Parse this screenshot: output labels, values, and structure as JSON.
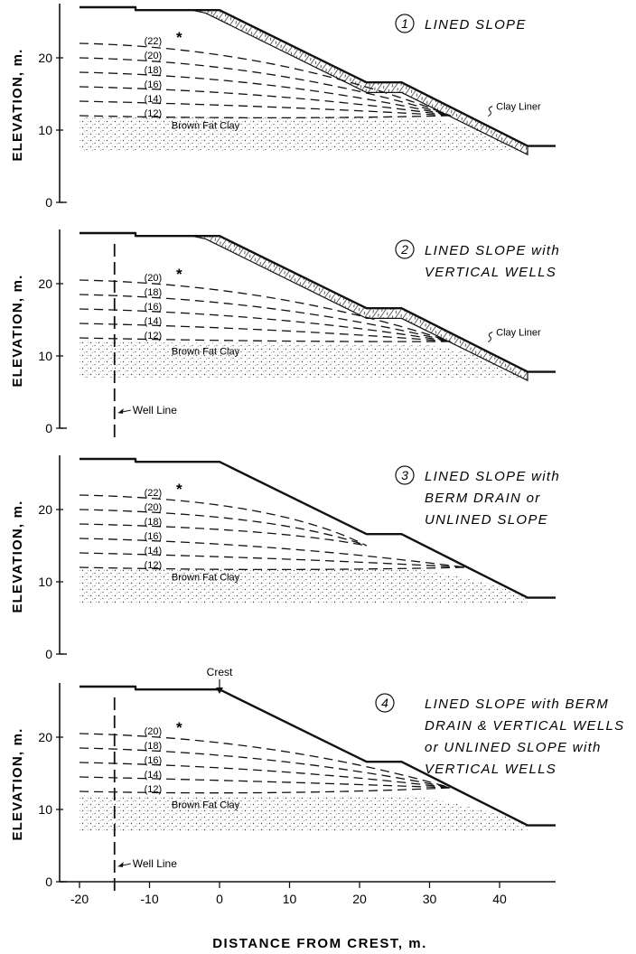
{
  "x_axis": {
    "label": "DISTANCE FROM CREST, m.",
    "ticks": [
      -20,
      -10,
      0,
      10,
      20,
      30,
      40
    ],
    "range": [
      -20,
      48
    ]
  },
  "y_axis": {
    "label": "ELEVATION, m.",
    "ticks": [
      0,
      10,
      20
    ],
    "range": [
      0,
      27
    ]
  },
  "labels": {
    "crest": "Crest",
    "brown_fat_clay": "Brown Fat Clay",
    "clay_liner": "Clay Liner",
    "well_line": "Well Line"
  },
  "colors": {
    "ink": "#111111",
    "paper": "#ffffff"
  },
  "panels": [
    {
      "number": "1",
      "title_lines": [
        "LINED SLOPE"
      ],
      "title_underline": [],
      "lined": true,
      "wells": false,
      "crest_label": false,
      "contours": [
        {
          "label": "(22)",
          "asterisk": true,
          "start_elev": 22,
          "end_x": 33,
          "end_elev": 12
        },
        {
          "label": "(20)",
          "asterisk": false,
          "start_elev": 20,
          "end_x": 33,
          "end_elev": 12
        },
        {
          "label": "(18)",
          "asterisk": false,
          "start_elev": 18,
          "end_x": 33,
          "end_elev": 12
        },
        {
          "label": "(16)",
          "asterisk": false,
          "start_elev": 16,
          "end_x": 33,
          "end_elev": 12
        },
        {
          "label": "(14)",
          "asterisk": false,
          "start_elev": 14,
          "end_x": 33,
          "end_elev": 12
        },
        {
          "label": "(12)",
          "asterisk": false,
          "start_elev": 12,
          "end_x": 33,
          "end_elev": 12
        }
      ]
    },
    {
      "number": "2",
      "title_lines": [
        "LINED SLOPE with",
        "VERTICAL WELLS"
      ],
      "title_underline": [],
      "lined": true,
      "wells": true,
      "crest_label": false,
      "contours": [
        {
          "label": "(20)",
          "asterisk": true,
          "start_elev": 20.5,
          "end_x": 33,
          "end_elev": 12
        },
        {
          "label": "(18)",
          "asterisk": false,
          "start_elev": 18.5,
          "end_x": 33,
          "end_elev": 12
        },
        {
          "label": "(16)",
          "asterisk": false,
          "start_elev": 16.5,
          "end_x": 33,
          "end_elev": 12
        },
        {
          "label": "(14)",
          "asterisk": false,
          "start_elev": 14.5,
          "end_x": 33,
          "end_elev": 12
        },
        {
          "label": "(12)",
          "asterisk": false,
          "start_elev": 12.5,
          "end_x": 33,
          "end_elev": 12
        }
      ]
    },
    {
      "number": "3",
      "title_lines": [
        "LINED SLOPE with",
        "BERM DRAIN or",
        "UNLINED SLOPE"
      ],
      "title_underline": [
        "or"
      ],
      "lined": false,
      "wells": false,
      "crest_label": false,
      "contours": [
        {
          "label": "(22)",
          "asterisk": true,
          "start_elev": 22,
          "end_x": 21,
          "end_elev": 15
        },
        {
          "label": "(20)",
          "asterisk": false,
          "start_elev": 20,
          "end_x": 21,
          "end_elev": 15
        },
        {
          "label": "(18)",
          "asterisk": false,
          "start_elev": 18,
          "end_x": 21,
          "end_elev": 15
        },
        {
          "label": "(16)",
          "asterisk": false,
          "start_elev": 16,
          "end_x": 35,
          "end_elev": 12
        },
        {
          "label": "(14)",
          "asterisk": false,
          "start_elev": 14,
          "end_x": 35,
          "end_elev": 12
        },
        {
          "label": "(12)",
          "asterisk": false,
          "start_elev": 12,
          "end_x": 35,
          "end_elev": 12
        }
      ]
    },
    {
      "number": "4",
      "title_lines": [
        "LINED SLOPE with BERM",
        "DRAIN & VERTICAL WELLS",
        "or UNLINED SLOPE with",
        "VERTICAL WELLS"
      ],
      "title_underline": [
        "or"
      ],
      "lined": false,
      "wells": true,
      "crest_label": true,
      "contours": [
        {
          "label": "(20)",
          "asterisk": true,
          "start_elev": 20.5,
          "end_x": 33,
          "end_elev": 13
        },
        {
          "label": "(18)",
          "asterisk": false,
          "start_elev": 18.5,
          "end_x": 33,
          "end_elev": 13
        },
        {
          "label": "(16)",
          "asterisk": false,
          "start_elev": 16.5,
          "end_x": 33,
          "end_elev": 13
        },
        {
          "label": "(14)",
          "asterisk": false,
          "start_elev": 14.5,
          "end_x": 33,
          "end_elev": 13
        },
        {
          "label": "(12)",
          "asterisk": false,
          "start_elev": 12.5,
          "end_x": 33,
          "end_elev": 13
        }
      ]
    }
  ]
}
